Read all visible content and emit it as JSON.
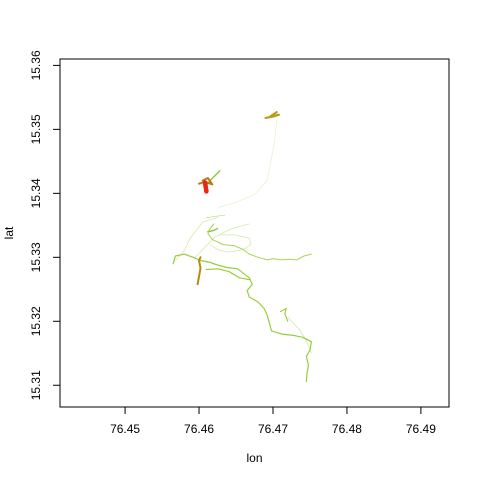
{
  "chart_data": {
    "type": "scatter",
    "title": "",
    "xlabel": "lon",
    "ylabel": "lat",
    "xlim": [
      76.4412,
      76.4938
    ],
    "ylim": [
      15.3066,
      15.361
    ],
    "xticks": [
      76.45,
      76.46,
      76.47,
      76.48,
      76.49
    ],
    "yticks": [
      15.31,
      15.32,
      15.33,
      15.34,
      15.35,
      15.36
    ],
    "xtick_labels": [
      "76.45",
      "76.46",
      "76.47",
      "76.48",
      "76.49"
    ],
    "ytick_labels": [
      "15.31",
      "15.32",
      "15.33",
      "15.34",
      "15.35",
      "15.36"
    ],
    "grid": false,
    "legend": "none",
    "series": [
      {
        "color": "#e0eec0",
        "width": 0.6,
        "points": [
          [
            76.4626,
            15.3378
          ],
          [
            76.465,
            15.3386
          ],
          [
            76.4675,
            15.3398
          ],
          [
            76.4692,
            15.342
          ],
          [
            76.4702,
            15.348
          ],
          [
            76.4705,
            15.3515
          ]
        ]
      },
      {
        "color": "#bfe08a",
        "width": 0.8,
        "points": [
          [
            76.461,
            15.3362
          ],
          [
            76.4635,
            15.3366
          ]
        ]
      },
      {
        "color": "#cfe9a0",
        "width": 0.7,
        "points": [
          [
            76.4568,
            15.3295
          ],
          [
            76.458,
            15.331
          ],
          [
            76.4588,
            15.333
          ],
          [
            76.4605,
            15.3355
          ],
          [
            76.4625,
            15.3362
          ]
        ]
      },
      {
        "color": "#cfe9a0",
        "width": 0.7,
        "points": [
          [
            76.4595,
            15.33
          ],
          [
            76.461,
            15.3318
          ],
          [
            76.462,
            15.333
          ],
          [
            76.4632,
            15.3338
          ],
          [
            76.4645,
            15.3345
          ],
          [
            76.466,
            15.335
          ],
          [
            76.4668,
            15.3352
          ]
        ]
      },
      {
        "color": "#cfe9a0",
        "width": 0.7,
        "points": [
          [
            76.4628,
            15.3335
          ],
          [
            76.4648,
            15.3335
          ],
          [
            76.4668,
            15.333
          ],
          [
            76.467,
            15.332
          ],
          [
            76.466,
            15.3312
          ],
          [
            76.464,
            15.3308
          ],
          [
            76.4625,
            15.3312
          ],
          [
            76.4615,
            15.332
          ]
        ]
      },
      {
        "color": "#cde89a",
        "width": 0.7,
        "points": [
          [
            76.472,
            15.3206
          ],
          [
            76.4735,
            15.3188
          ],
          [
            76.4745,
            15.317
          ],
          [
            76.4752,
            15.315
          ]
        ]
      },
      {
        "color": "#a9d455",
        "width": 1.0,
        "points": [
          [
            76.462,
            15.3352
          ],
          [
            76.4615,
            15.3345
          ],
          [
            76.4612,
            15.3337
          ],
          [
            76.4618,
            15.3328
          ],
          [
            76.4632,
            15.332
          ],
          [
            76.4648,
            15.3318
          ],
          [
            76.466,
            15.3312
          ],
          [
            76.4668,
            15.3305
          ],
          [
            76.468,
            15.33
          ],
          [
            76.4692,
            15.3296
          ],
          [
            76.47,
            15.3298
          ],
          [
            76.471,
            15.3296
          ],
          [
            76.4722,
            15.3297
          ],
          [
            76.4732,
            15.3296
          ],
          [
            76.4742,
            15.3302
          ],
          [
            76.4752,
            15.3305
          ]
        ]
      },
      {
        "color": "#98cc3c",
        "width": 1.2,
        "points": [
          [
            76.4565,
            15.329
          ],
          [
            76.4568,
            15.3302
          ],
          [
            76.458,
            15.3305
          ],
          [
            76.4592,
            15.33
          ],
          [
            76.4602,
            15.3295
          ],
          [
            76.4615,
            15.3292
          ],
          [
            76.4625,
            15.3288
          ],
          [
            76.4638,
            15.3284
          ],
          [
            76.4652,
            15.3282
          ],
          [
            76.466,
            15.3275
          ],
          [
            76.4668,
            15.3268
          ],
          [
            76.4672,
            15.3258
          ],
          [
            76.4665,
            15.3248
          ],
          [
            76.4668,
            15.3238
          ],
          [
            76.468,
            15.323
          ],
          [
            76.4688,
            15.322
          ],
          [
            76.4692,
            15.321
          ],
          [
            76.4695,
            15.3198
          ],
          [
            76.4698,
            15.3185
          ],
          [
            76.4712,
            15.318
          ],
          [
            76.4728,
            15.3178
          ],
          [
            76.474,
            15.3175
          ],
          [
            76.4752,
            15.3168
          ],
          [
            76.475,
            15.3155
          ],
          [
            76.4745,
            15.3145
          ],
          [
            76.4748,
            15.3132
          ],
          [
            76.4746,
            15.3118
          ],
          [
            76.4745,
            15.3106
          ]
        ]
      },
      {
        "color": "#98cc3c",
        "width": 1.2,
        "points": [
          [
            76.461,
            15.3281
          ],
          [
            76.4625,
            15.3282
          ],
          [
            76.464,
            15.3278
          ],
          [
            76.4655,
            15.3268
          ],
          [
            76.4668,
            15.3265
          ]
        ]
      },
      {
        "color": "#98cc3c",
        "width": 1.1,
        "points": [
          [
            76.472,
            15.32
          ],
          [
            76.4716,
            15.3212
          ],
          [
            76.4718,
            15.322
          ],
          [
            76.471,
            15.3215
          ]
        ]
      },
      {
        "color": "#8cc43a",
        "width": 1.4,
        "points": [
          [
            76.4612,
            15.334
          ],
          [
            76.462,
            15.3342
          ],
          [
            76.4625,
            15.3345
          ]
        ]
      },
      {
        "color": "#8cc43a",
        "width": 1.4,
        "points": [
          [
            76.4608,
            15.341
          ],
          [
            76.4615,
            15.342
          ],
          [
            76.4622,
            15.3428
          ],
          [
            76.4628,
            15.3435
          ]
        ]
      },
      {
        "color": "#b5a018",
        "width": 2.2,
        "points": [
          [
            76.469,
            15.3518
          ],
          [
            76.47,
            15.352
          ],
          [
            76.4708,
            15.3523
          ],
          [
            76.4695,
            15.3519
          ],
          [
            76.4705,
            15.3527
          ]
        ]
      },
      {
        "color": "#b88a12",
        "width": 2.0,
        "points": [
          [
            76.4598,
            15.3258
          ],
          [
            76.46,
            15.327
          ],
          [
            76.4602,
            15.3283
          ],
          [
            76.46,
            15.3295
          ],
          [
            76.4602,
            15.33
          ]
        ]
      },
      {
        "color": "#c07818",
        "width": 2.0,
        "points": [
          [
            76.46,
            15.3415
          ],
          [
            76.4608,
            15.3418
          ],
          [
            76.4618,
            15.3414
          ],
          [
            76.4612,
            15.3424
          ],
          [
            76.4605,
            15.342
          ]
        ]
      },
      {
        "color": "#e82812",
        "width": 4.5,
        "points": [
          [
            76.4608,
            15.3417
          ],
          [
            76.4609,
            15.341
          ],
          [
            76.461,
            15.3403
          ]
        ]
      }
    ]
  }
}
